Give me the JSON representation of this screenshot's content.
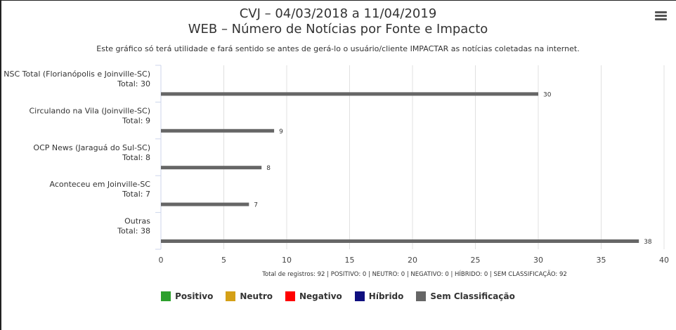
{
  "chart_data": {
    "type": "bar",
    "orientation": "horizontal",
    "title": "CVJ – 04/03/2018 a 11/04/2019",
    "title2": "WEB – Número de Notícias por Fonte e Impacto",
    "subtitle": "Este gráfico só terá utilidade e fará sentido se antes de gerá-lo o usuário/cliente IMPACTAR as notícias coletadas na internet.",
    "categories": [
      {
        "name": "NSC Total (Florianópolis e Joinville-SC)",
        "total": "Total: 30"
      },
      {
        "name": "Circulando na Vila (Joinville-SC)",
        "total": "Total: 9"
      },
      {
        "name": "OCP News (Jaraguá do Sul-SC)",
        "total": "Total: 8"
      },
      {
        "name": "Aconteceu em Joinville-SC",
        "total": "Total: 7"
      },
      {
        "name": "Outras",
        "total": "Total: 38"
      }
    ],
    "series": [
      {
        "name": "Positivo",
        "color": "#2ca02c",
        "values": [
          0,
          0,
          0,
          0,
          0
        ]
      },
      {
        "name": "Neutro",
        "color": "#d4a017",
        "values": [
          0,
          0,
          0,
          0,
          0
        ]
      },
      {
        "name": "Negativo",
        "color": "#ff0000",
        "values": [
          0,
          0,
          0,
          0,
          0
        ]
      },
      {
        "name": "Híbrido",
        "color": "#0f0f7f",
        "values": [
          0,
          0,
          0,
          0,
          0
        ]
      },
      {
        "name": "Sem Classificação",
        "color": "#666666",
        "values": [
          30,
          9,
          8,
          7,
          38
        ]
      }
    ],
    "xlim": [
      0,
      40
    ],
    "xticks": [
      0,
      5,
      10,
      15,
      20,
      25,
      30,
      35,
      40
    ],
    "xlabel": "Total de registros: 92 | POSITIVO: 0 | NEUTRO: 0 | NEGATIVO: 0 | HÍBRIDO: 0 | SEM CLASSIFICAÇÃO: 92",
    "grid": true,
    "legend_position": "bottom"
  }
}
